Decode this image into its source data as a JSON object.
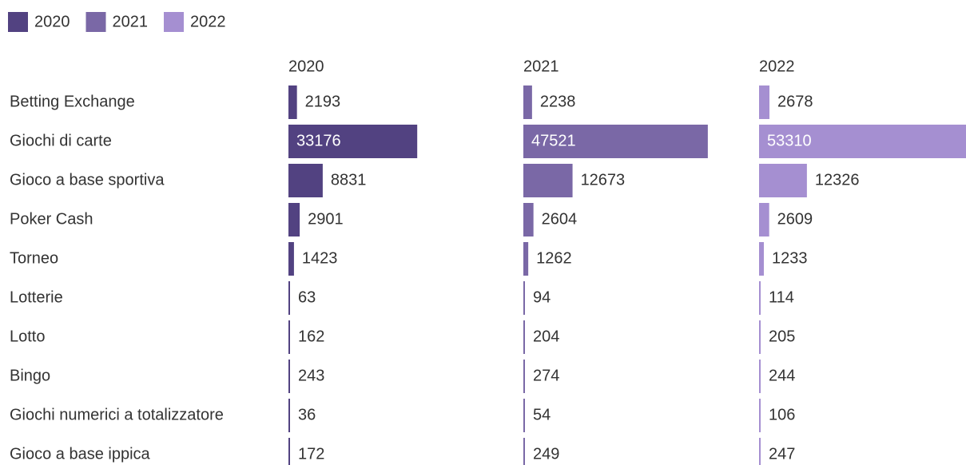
{
  "chart_data": {
    "type": "bar",
    "categories": [
      "Betting Exchange",
      "Giochi di carte",
      "Gioco a base sportiva",
      "Poker Cash",
      "Torneo",
      "Lotterie",
      "Lotto",
      "Bingo",
      "Giochi numerici a totalizzatore",
      "Gioco a base ippica"
    ],
    "series": [
      {
        "name": "2020",
        "color": "#524281",
        "values": [
          2193,
          33176,
          8831,
          2901,
          1423,
          63,
          162,
          243,
          36,
          172
        ]
      },
      {
        "name": "2021",
        "color": "#7a68a6",
        "values": [
          2238,
          47521,
          12673,
          2604,
          1262,
          94,
          204,
          274,
          54,
          249
        ]
      },
      {
        "name": "2022",
        "color": "#a58fd1",
        "values": [
          2678,
          53310,
          12326,
          2609,
          1233,
          114,
          205,
          244,
          106,
          247
        ]
      }
    ],
    "legend": "top-left"
  }
}
